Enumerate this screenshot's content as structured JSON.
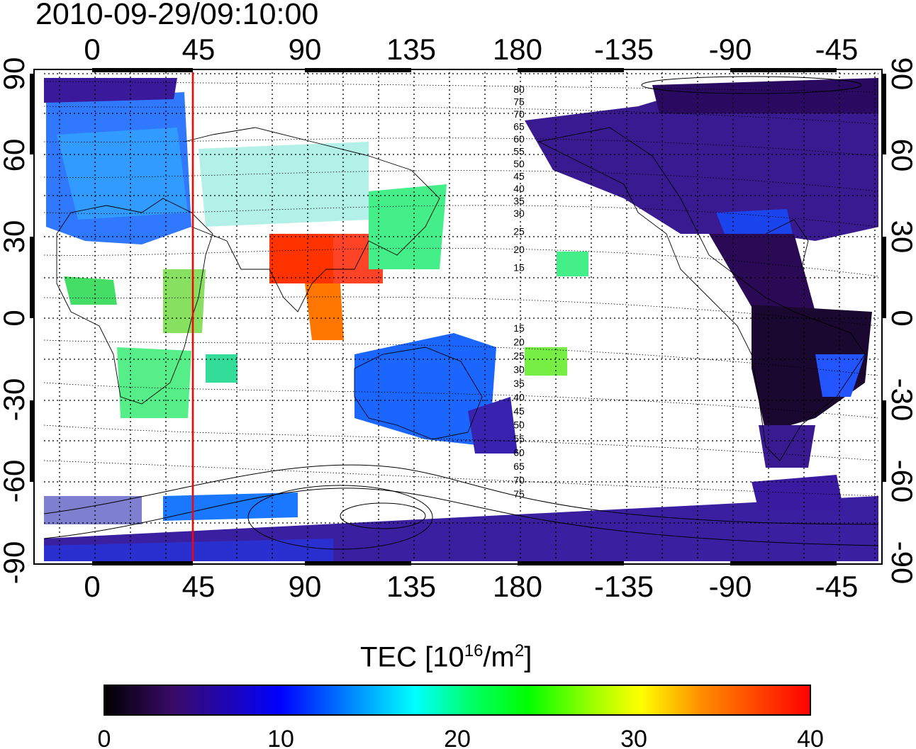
{
  "title": "2010-09-29/09:10:00",
  "map": {
    "x_ticks": [
      "0",
      "45",
      "90",
      "135",
      "180",
      "-135",
      "-90",
      "-45"
    ],
    "y_ticks": [
      "90",
      "60",
      "30",
      "0",
      "-30",
      "-60",
      "-90"
    ],
    "marker_longitude": 45,
    "contour_labels_north": [
      "80",
      "75",
      "70",
      "65",
      "60",
      "55",
      "50",
      "45",
      "40",
      "35",
      "30",
      "25",
      "20",
      "15"
    ],
    "contour_labels_south": [
      "15",
      "20",
      "25",
      "30",
      "35",
      "40",
      "45",
      "50",
      "55",
      "60",
      "65",
      "70",
      "75"
    ]
  },
  "colorbar": {
    "title_prefix": "TEC  [10",
    "title_exp1": "16",
    "title_mid": "/m",
    "title_exp2": "2",
    "title_suffix": "]",
    "ticks": [
      "0",
      "10",
      "20",
      "30",
      "40"
    ],
    "range": [
      0,
      40
    ],
    "colors": [
      "#000000",
      "#2a0a3a",
      "#3a0aa0",
      "#0000ff",
      "#0066ff",
      "#00aaff",
      "#00ffff",
      "#00ff88",
      "#00ff00",
      "#88ff00",
      "#ffff00",
      "#ffaa00",
      "#ff5500",
      "#ff0000"
    ]
  }
}
